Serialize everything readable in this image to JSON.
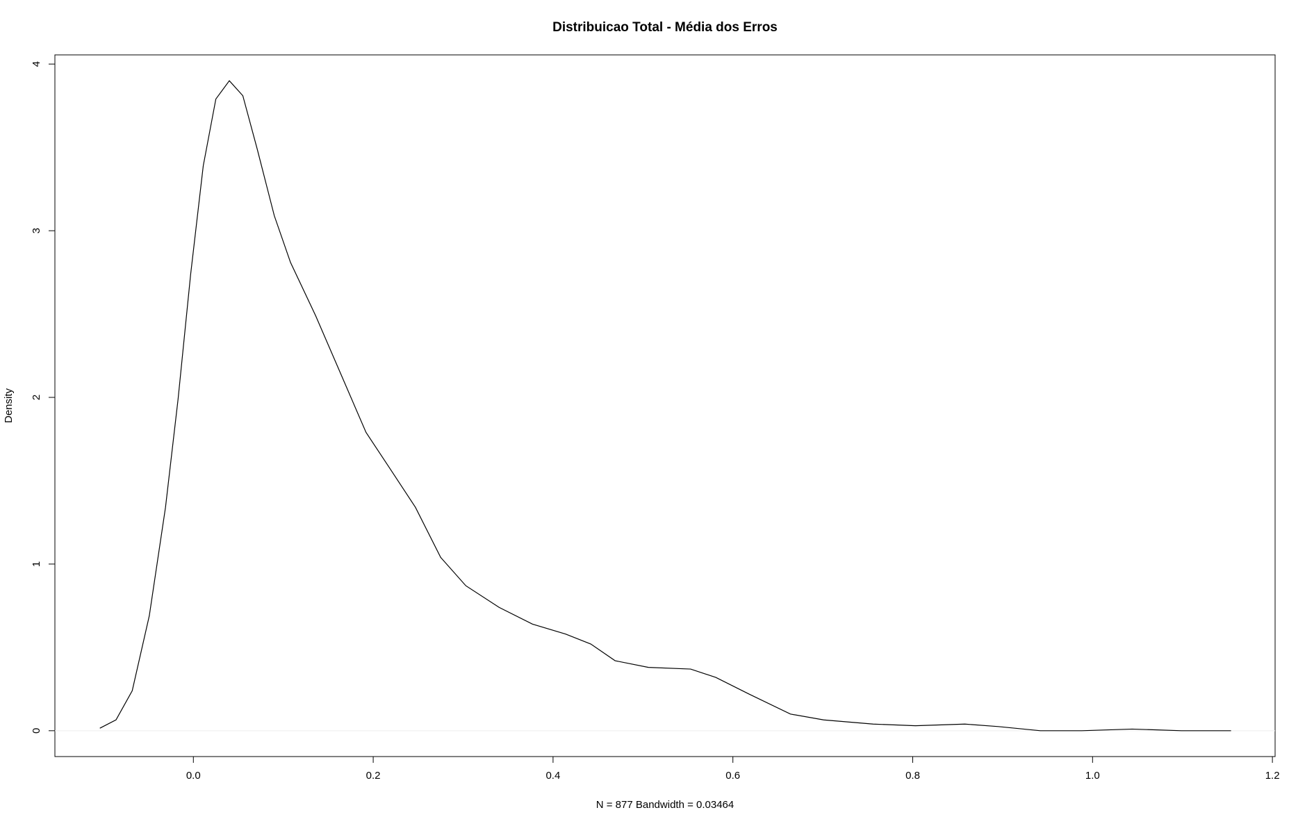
{
  "chart_data": {
    "type": "line",
    "title": "Distribuicao Total - Média dos Erros",
    "x_label": "N = 877   Bandwidth = 0.03464",
    "y_label": "Density",
    "xlim": [
      -0.154,
      1.203
    ],
    "ylim": [
      -0.155,
      4.055
    ],
    "xticks": [
      {
        "value": 0,
        "label": "0.0"
      },
      0.2,
      0.4,
      0.6,
      0.8,
      {
        "value": 1,
        "label": "1.0"
      },
      1.2
    ],
    "yticks": [
      0,
      1,
      2,
      3,
      4
    ],
    "color": "#000000",
    "x": [
      -0.104,
      -0.086,
      -0.068,
      -0.049,
      -0.031,
      -0.017,
      -0.003,
      0.011,
      0.025,
      0.04,
      0.055,
      0.071,
      0.09,
      0.108,
      0.136,
      0.164,
      0.192,
      0.219,
      0.247,
      0.275,
      0.303,
      0.34,
      0.377,
      0.414,
      0.442,
      0.469,
      0.506,
      0.553,
      0.581,
      0.618,
      0.664,
      0.701,
      0.756,
      0.803,
      0.858,
      0.895,
      0.942,
      0.988,
      1.044,
      1.099,
      1.154
    ],
    "values": [
      0.015,
      0.065,
      0.24,
      0.69,
      1.34,
      1.99,
      2.74,
      3.39,
      3.79,
      3.9,
      3.81,
      3.49,
      3.09,
      2.81,
      2.49,
      2.14,
      1.79,
      1.57,
      1.34,
      1.04,
      0.87,
      0.74,
      0.64,
      0.58,
      0.52,
      0.42,
      0.38,
      0.37,
      0.32,
      0.22,
      0.1,
      0.065,
      0.04,
      0.03,
      0.04,
      0.025,
      0,
      0,
      0.01,
      0,
      0
    ]
  }
}
